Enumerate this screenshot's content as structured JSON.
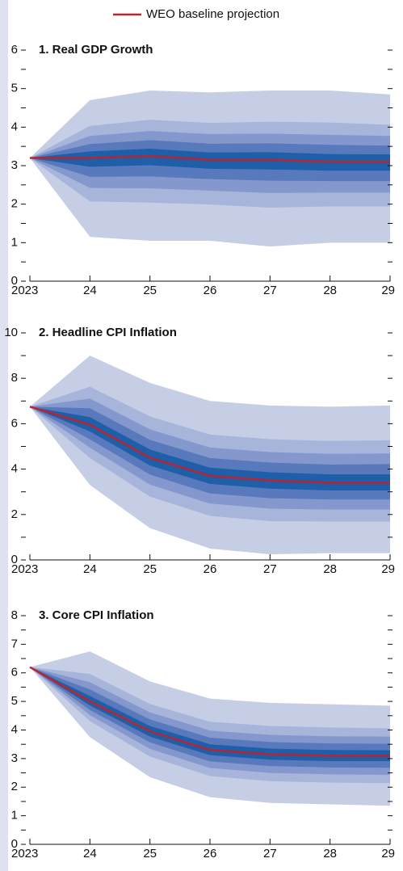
{
  "legend": {
    "label": "WEO baseline projection",
    "color": "#b8252f"
  },
  "chart_data": [
    {
      "type": "fan",
      "title": "1. Real GDP Growth",
      "categories": [
        "2023",
        "24",
        "25",
        "26",
        "27",
        "28",
        "29"
      ],
      "ylim": [
        0,
        6
      ],
      "yticks": [
        0,
        1,
        2,
        3,
        4,
        5,
        6
      ],
      "yminorticks": [
        0.5,
        1.5,
        2.5,
        3.5,
        4.5,
        5.5
      ],
      "baseline": [
        3.2,
        3.2,
        3.25,
        3.15,
        3.15,
        3.1,
        3.1
      ],
      "bands": [
        {
          "color": "#c6cee6",
          "upper": [
            3.2,
            4.7,
            4.95,
            4.9,
            4.95,
            4.95,
            4.85
          ],
          "lower": [
            3.2,
            1.15,
            1.05,
            1.05,
            0.9,
            1.0,
            1.0
          ]
        },
        {
          "color": "#a8b5db",
          "upper": [
            3.2,
            4.03,
            4.19,
            4.11,
            4.14,
            4.12,
            4.06
          ],
          "lower": [
            3.2,
            2.07,
            2.04,
            1.99,
            1.91,
            1.94,
            1.94
          ]
        },
        {
          "color": "#8598cd",
          "upper": [
            3.2,
            3.77,
            3.9,
            3.82,
            3.83,
            3.8,
            3.77
          ],
          "lower": [
            3.2,
            2.42,
            2.41,
            2.35,
            2.29,
            2.3,
            2.3
          ]
        },
        {
          "color": "#5879bb",
          "upper": [
            3.2,
            3.56,
            3.66,
            3.57,
            3.58,
            3.54,
            3.52
          ],
          "lower": [
            3.2,
            2.71,
            2.72,
            2.65,
            2.61,
            2.6,
            2.6
          ]
        },
        {
          "color": "#1f5ea8",
          "upper": [
            3.2,
            3.37,
            3.44,
            3.34,
            3.35,
            3.3,
            3.29
          ],
          "lower": [
            3.2,
            2.97,
            3.01,
            2.92,
            2.9,
            2.87,
            2.87
          ]
        }
      ]
    },
    {
      "type": "fan",
      "title": "2. Headline CPI Inflation",
      "categories": [
        "2023",
        "24",
        "25",
        "26",
        "27",
        "28",
        "29"
      ],
      "ylim": [
        0,
        10
      ],
      "yticks": [
        0,
        2,
        4,
        6,
        8,
        10
      ],
      "yminorticks": [
        1,
        3,
        5,
        7,
        9
      ],
      "baseline": [
        6.75,
        5.95,
        4.5,
        3.7,
        3.5,
        3.4,
        3.4
      ],
      "bands": [
        {
          "color": "#c6cee6",
          "upper": [
            6.75,
            9.0,
            7.8,
            7.0,
            6.8,
            6.75,
            6.8
          ],
          "lower": [
            6.75,
            3.3,
            1.4,
            0.5,
            0.25,
            0.3,
            0.3
          ]
        },
        {
          "color": "#a8b5db",
          "upper": [
            6.75,
            7.63,
            6.32,
            5.52,
            5.32,
            5.24,
            5.27
          ],
          "lower": [
            6.75,
            4.49,
            2.79,
            1.94,
            1.71,
            1.69,
            1.69
          ]
        },
        {
          "color": "#8598cd",
          "upper": [
            6.75,
            7.11,
            5.75,
            4.95,
            4.75,
            4.67,
            4.69
          ],
          "lower": [
            6.75,
            4.94,
            3.32,
            2.48,
            2.26,
            2.22,
            2.22
          ]
        },
        {
          "color": "#5879bb",
          "upper": [
            6.75,
            6.68,
            5.29,
            4.49,
            4.29,
            4.2,
            4.22
          ],
          "lower": [
            6.75,
            5.31,
            3.76,
            2.93,
            2.72,
            2.66,
            2.66
          ]
        },
        {
          "color": "#1f5ea8",
          "upper": [
            6.75,
            6.29,
            4.86,
            4.06,
            3.86,
            3.77,
            3.77
          ],
          "lower": [
            6.75,
            5.66,
            4.16,
            3.35,
            3.14,
            3.06,
            3.06
          ]
        }
      ]
    },
    {
      "type": "fan",
      "title": "3. Core CPI Inflation",
      "categories": [
        "2023",
        "24",
        "25",
        "26",
        "27",
        "28",
        "29"
      ],
      "ylim": [
        0,
        8
      ],
      "yticks": [
        0,
        1,
        2,
        3,
        4,
        5,
        6,
        7,
        8
      ],
      "yminorticks": [
        0.5,
        1.5,
        2.5,
        3.5,
        4.5,
        5.5,
        6.5,
        7.5
      ],
      "baseline": [
        6.2,
        5.0,
        3.95,
        3.3,
        3.15,
        3.1,
        3.1
      ],
      "bands": [
        {
          "color": "#c6cee6",
          "upper": [
            6.2,
            6.75,
            5.7,
            5.1,
            4.95,
            4.9,
            4.85
          ],
          "lower": [
            6.2,
            3.75,
            2.35,
            1.65,
            1.45,
            1.4,
            1.35
          ]
        },
        {
          "color": "#a8b5db",
          "upper": [
            6.2,
            5.96,
            4.91,
            4.29,
            4.14,
            4.09,
            4.06
          ],
          "lower": [
            6.2,
            4.31,
            3.07,
            2.39,
            2.21,
            2.16,
            2.14
          ]
        },
        {
          "color": "#8598cd",
          "upper": [
            6.2,
            5.67,
            4.62,
            3.98,
            3.83,
            3.78,
            3.77
          ],
          "lower": [
            6.2,
            4.52,
            3.34,
            2.67,
            2.5,
            2.45,
            2.43
          ]
        },
        {
          "color": "#5879bb",
          "upper": [
            6.2,
            5.42,
            4.37,
            3.73,
            3.58,
            3.53,
            3.52
          ],
          "lower": [
            6.2,
            4.7,
            3.57,
            2.9,
            2.74,
            2.69,
            2.68
          ]
        },
        {
          "color": "#1f5ea8",
          "upper": [
            6.2,
            5.19,
            4.14,
            3.5,
            3.35,
            3.3,
            3.29
          ],
          "lower": [
            6.2,
            4.86,
            3.77,
            3.12,
            2.96,
            2.91,
            2.91
          ]
        }
      ]
    }
  ]
}
